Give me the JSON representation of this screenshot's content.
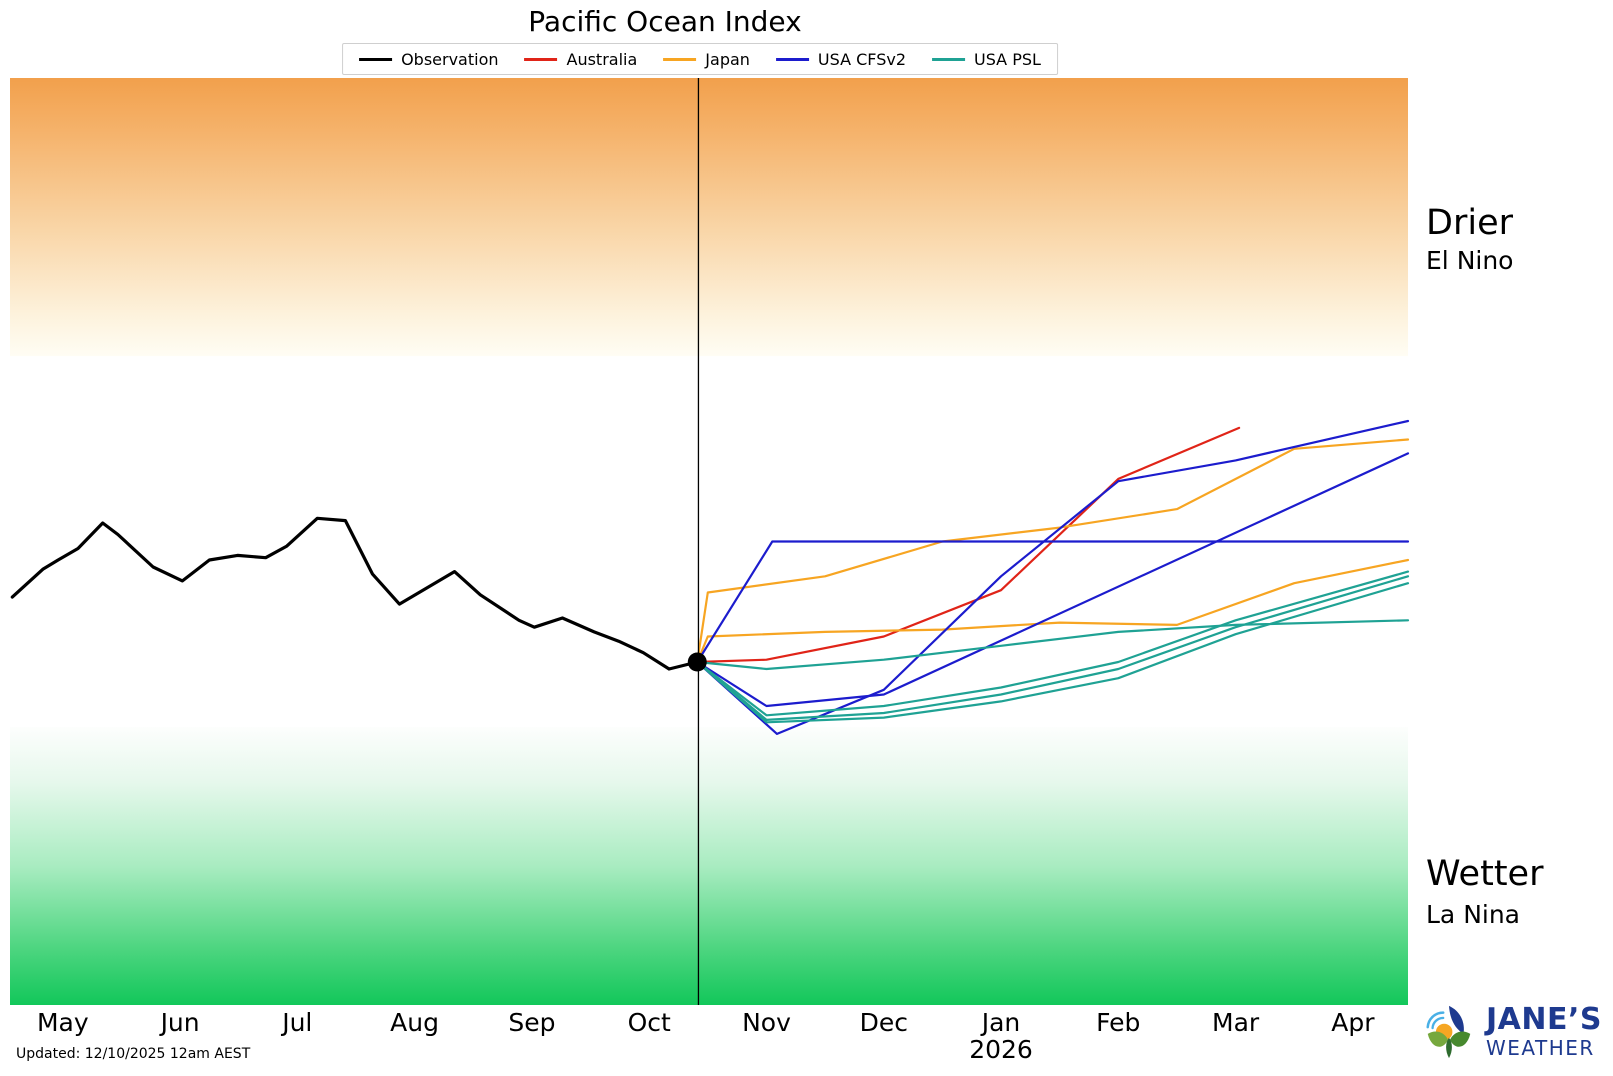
{
  "title": "Pacific Ocean Index",
  "legend": {
    "items": [
      {
        "label": "Observation",
        "color": "#000000"
      },
      {
        "label": "Australia",
        "color": "#e02418"
      },
      {
        "label": "Japan",
        "color": "#f7a522"
      },
      {
        "label": "USA CFSv2",
        "color": "#1c1ccd"
      },
      {
        "label": "USA PSL",
        "color": "#1fa294"
      }
    ]
  },
  "annotations": {
    "drier": "Drier",
    "el_nino": "El Nino",
    "wetter": "Wetter",
    "la_nina": "La Nina",
    "updated": "Updated: 12/10/2025 12am AEST"
  },
  "logo": {
    "name": "JANE’S",
    "sub": "WEATHER"
  },
  "chart_data": {
    "type": "line",
    "title": "Pacific Ocean Index",
    "xlabel": "",
    "ylabel": "",
    "xlim": [
      -0.45,
      11.47
    ],
    "ylim": [
      -2,
      2
    ],
    "grid": false,
    "legend_position": "top-center",
    "bands": {
      "drier_threshold": 0.8,
      "wetter_threshold": -0.8,
      "drier_color": "#f2a04c",
      "wetter_color": "#12c75a"
    },
    "now_line_x": 5.42,
    "now_dot": {
      "x": 5.41,
      "y": -0.52
    },
    "x_ticks": {
      "values": [
        0,
        1,
        2,
        3,
        4,
        5,
        6,
        7,
        8,
        9,
        10,
        11
      ],
      "labels": [
        "May",
        "Jun",
        "Jul",
        "Aug",
        "Sep",
        "Oct",
        "Nov",
        "Dec",
        "Jan",
        "Feb",
        "Mar",
        "Apr"
      ],
      "year_label": "2026",
      "year_at": 8
    },
    "series": [
      {
        "id": "observation",
        "legend": "Observation",
        "color": "#000000",
        "width": 3.2,
        "x": [
          -0.43,
          -0.17,
          -0.04,
          0.13,
          0.34,
          0.47,
          0.77,
          1.02,
          1.25,
          1.49,
          1.73,
          1.91,
          2.17,
          2.41,
          2.64,
          2.87,
          3.34,
          3.56,
          3.89,
          4.02,
          4.26,
          4.53,
          4.74,
          4.95,
          5.17,
          5.41
        ],
        "y": [
          -0.24,
          -0.12,
          -0.08,
          -0.03,
          0.08,
          0.03,
          -0.11,
          -0.17,
          -0.08,
          -0.06,
          -0.07,
          -0.02,
          0.1,
          0.09,
          -0.14,
          -0.27,
          -0.13,
          -0.23,
          -0.34,
          -0.37,
          -0.33,
          -0.39,
          -0.43,
          -0.48,
          -0.55,
          -0.52
        ]
      },
      {
        "id": "australia",
        "legend": "Australia",
        "color": "#e02418",
        "width": 2.2,
        "x": [
          5.41,
          6,
          7,
          8,
          9,
          10.03
        ],
        "y": [
          -0.52,
          -0.51,
          -0.41,
          -0.21,
          0.27,
          0.49
        ]
      },
      {
        "id": "japan-1",
        "legend": "Japan",
        "color": "#f7a522",
        "width": 2.2,
        "x": [
          5.41,
          5.5,
          6.5,
          7.5,
          8.5,
          9.5,
          10.5,
          11.47
        ],
        "y": [
          -0.52,
          -0.22,
          -0.15,
          0.0,
          0.06,
          0.14,
          0.4,
          0.44
        ]
      },
      {
        "id": "japan-2",
        "legend": "Japan",
        "color": "#f7a522",
        "width": 2.2,
        "x": [
          5.41,
          5.5,
          6.5,
          7.5,
          8.5,
          9.5,
          10.5,
          11.47
        ],
        "y": [
          -0.52,
          -0.41,
          -0.39,
          -0.38,
          -0.35,
          -0.36,
          -0.18,
          -0.08
        ]
      },
      {
        "id": "usa-cfsv2-1",
        "legend": "USA CFSv2",
        "color": "#1c1ccd",
        "width": 2.2,
        "x": [
          5.41,
          6.05,
          11.47
        ],
        "y": [
          -0.52,
          0.0,
          0.0
        ]
      },
      {
        "id": "usa-cfsv2-2",
        "legend": "USA CFSv2",
        "color": "#1c1ccd",
        "width": 2.2,
        "x": [
          5.41,
          6,
          7,
          11.47
        ],
        "y": [
          -0.52,
          -0.71,
          -0.66,
          0.38
        ]
      },
      {
        "id": "usa-cfsv2-3",
        "legend": "USA CFSv2",
        "color": "#1c1ccd",
        "width": 2.2,
        "x": [
          5.41,
          6.09,
          7,
          8,
          9,
          10,
          11.47
        ],
        "y": [
          -0.52,
          -0.83,
          -0.64,
          -0.15,
          0.26,
          0.35,
          0.52
        ]
      },
      {
        "id": "usa-psl-1",
        "legend": "USA PSL",
        "color": "#1fa294",
        "width": 2.2,
        "x": [
          5.41,
          6,
          7,
          8,
          9,
          10,
          11.47
        ],
        "y": [
          -0.52,
          -0.55,
          -0.51,
          -0.45,
          -0.39,
          -0.36,
          -0.34
        ]
      },
      {
        "id": "usa-psl-2",
        "legend": "USA PSL",
        "color": "#1fa294",
        "width": 2.2,
        "x": [
          5.41,
          6,
          7,
          8,
          9,
          10,
          11.47
        ],
        "y": [
          -0.52,
          -0.75,
          -0.71,
          -0.63,
          -0.52,
          -0.34,
          -0.13
        ]
      },
      {
        "id": "usa-psl-3",
        "legend": "USA PSL",
        "color": "#1fa294",
        "width": 2.2,
        "x": [
          5.41,
          6,
          7,
          8,
          9,
          10,
          11.47
        ],
        "y": [
          -0.52,
          -0.77,
          -0.74,
          -0.66,
          -0.55,
          -0.37,
          -0.15
        ]
      },
      {
        "id": "usa-psl-4",
        "legend": "USA PSL",
        "color": "#1fa294",
        "width": 2.2,
        "x": [
          5.41,
          6,
          7,
          8,
          9,
          10,
          11.47
        ],
        "y": [
          -0.52,
          -0.78,
          -0.76,
          -0.69,
          -0.59,
          -0.4,
          -0.18
        ]
      }
    ]
  }
}
